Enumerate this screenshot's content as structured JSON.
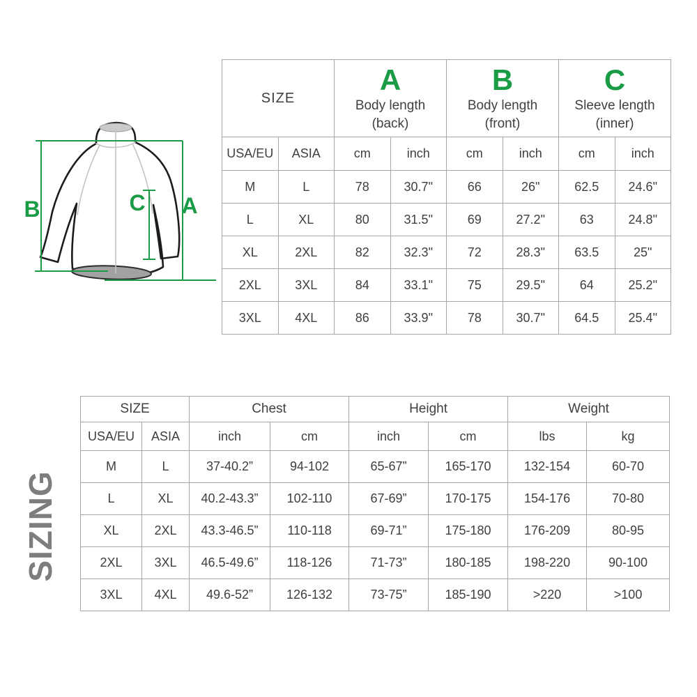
{
  "colors": {
    "accent_green": "#1a9c47",
    "table_border": "#a6a6a6",
    "text": "#3f3f3f",
    "sizing_text": "#7d7d7d"
  },
  "sizing_label": "SIZING",
  "diagram": {
    "label_a": "A",
    "label_b": "B",
    "label_c": "C"
  },
  "measurement_table": {
    "size_header": "SIZE",
    "groups": [
      {
        "letter": "A",
        "title": "Body length",
        "subtitle": "(back)"
      },
      {
        "letter": "B",
        "title": "Body length",
        "subtitle": "(front)"
      },
      {
        "letter": "C",
        "title": "Sleeve length",
        "subtitle": "(inner)"
      }
    ],
    "sub_headers": [
      "USA/EU",
      "ASIA",
      "cm",
      "inch",
      "cm",
      "inch",
      "cm",
      "inch"
    ],
    "rows": [
      [
        "M",
        "L",
        "78",
        "30.7\"",
        "66",
        "26\"",
        "62.5",
        "24.6\""
      ],
      [
        "L",
        "XL",
        "80",
        "31.5\"",
        "69",
        "27.2\"",
        "63",
        "24.8\""
      ],
      [
        "XL",
        "2XL",
        "82",
        "32.3\"",
        "72",
        "28.3\"",
        "63.5",
        "25\""
      ],
      [
        "2XL",
        "3XL",
        "84",
        "33.1\"",
        "75",
        "29.5\"",
        "64",
        "25.2\""
      ],
      [
        "3XL",
        "4XL",
        "86",
        "33.9\"",
        "78",
        "30.7\"",
        "64.5",
        "25.4\""
      ]
    ]
  },
  "fit_table": {
    "size_header": "SIZE",
    "groups": [
      {
        "title": "Chest"
      },
      {
        "title": "Height"
      },
      {
        "title": "Weight"
      }
    ],
    "sub_headers": [
      "USA/EU",
      "ASIA",
      "inch",
      "cm",
      "inch",
      "cm",
      "lbs",
      "kg"
    ],
    "rows": [
      [
        "M",
        "L",
        "37-40.2”",
        "94-102",
        "65-67”",
        "165-170",
        "132-154",
        "60-70"
      ],
      [
        "L",
        "XL",
        "40.2-43.3”",
        "102-110",
        "67-69”",
        "170-175",
        "154-176",
        "70-80"
      ],
      [
        "XL",
        "2XL",
        "43.3-46.5”",
        "110-118",
        "69-71”",
        "175-180",
        "176-209",
        "80-95"
      ],
      [
        "2XL",
        "3XL",
        "46.5-49.6”",
        "118-126",
        "71-73”",
        "180-185",
        "198-220",
        "90-100"
      ],
      [
        "3XL",
        "4XL",
        "49.6-52”",
        "126-132",
        "73-75”",
        "185-190",
        ">220",
        ">100"
      ]
    ]
  }
}
